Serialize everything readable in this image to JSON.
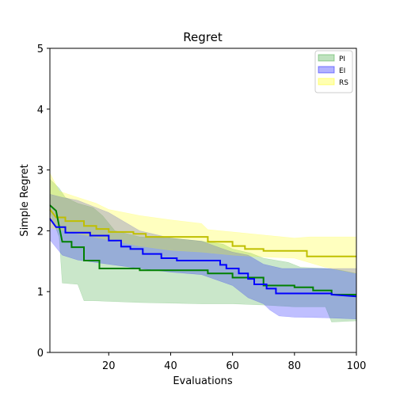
{
  "chart_data": {
    "type": "line",
    "title": "Regret",
    "xlabel": "Evaluations",
    "ylabel": "Simple Regret",
    "xlim": [
      1,
      100
    ],
    "ylim": [
      0,
      5
    ],
    "xticks": [
      20,
      40,
      60,
      80,
      100
    ],
    "yticks": [
      0,
      1,
      2,
      3,
      4,
      5
    ],
    "grid": false,
    "legend_position": "top-right",
    "series": [
      {
        "name": "PI",
        "line_color": "#008000",
        "fill_color": "#2ca02c",
        "mean": [
          [
            1,
            2.42
          ],
          [
            3,
            2.33
          ],
          [
            5,
            1.82
          ],
          [
            8,
            1.82
          ],
          [
            8,
            1.73
          ],
          [
            12,
            1.73
          ],
          [
            12,
            1.51
          ],
          [
            17,
            1.51
          ],
          [
            17,
            1.38
          ],
          [
            30,
            1.38
          ],
          [
            30,
            1.35
          ],
          [
            52,
            1.35
          ],
          [
            52,
            1.3
          ],
          [
            60,
            1.3
          ],
          [
            60,
            1.23
          ],
          [
            70,
            1.23
          ],
          [
            70,
            1.1
          ],
          [
            80,
            1.1
          ],
          [
            80,
            1.07
          ],
          [
            86,
            1.07
          ],
          [
            86,
            1.02
          ],
          [
            92,
            1.02
          ],
          [
            92,
            0.95
          ],
          [
            100,
            0.95
          ]
        ],
        "upper": [
          [
            1,
            2.85
          ],
          [
            4,
            2.7
          ],
          [
            6,
            2.55
          ],
          [
            10,
            2.45
          ],
          [
            15,
            2.38
          ],
          [
            18,
            2.25
          ],
          [
            22,
            2.0
          ],
          [
            30,
            1.9
          ],
          [
            40,
            1.88
          ],
          [
            50,
            1.83
          ],
          [
            57,
            1.78
          ],
          [
            60,
            1.7
          ],
          [
            66,
            1.63
          ],
          [
            70,
            1.55
          ],
          [
            78,
            1.48
          ],
          [
            82,
            1.4
          ],
          [
            90,
            1.38
          ],
          [
            95,
            1.35
          ],
          [
            100,
            1.3
          ]
        ],
        "lower": [
          [
            1,
            2.3
          ],
          [
            4,
            1.9
          ],
          [
            5,
            1.14
          ],
          [
            10,
            1.12
          ],
          [
            12,
            0.85
          ],
          [
            15,
            0.85
          ],
          [
            30,
            0.82
          ],
          [
            50,
            0.8
          ],
          [
            60,
            0.8
          ],
          [
            70,
            0.78
          ],
          [
            80,
            0.75
          ],
          [
            90,
            0.75
          ],
          [
            92,
            0.5
          ],
          [
            100,
            0.52
          ]
        ]
      },
      {
        "name": "EI",
        "line_color": "#0000ff",
        "fill_color": "#0000ff",
        "mean": [
          [
            1,
            2.2
          ],
          [
            3,
            2.06
          ],
          [
            6,
            2.06
          ],
          [
            6,
            1.97
          ],
          [
            14,
            1.97
          ],
          [
            14,
            1.92
          ],
          [
            20,
            1.92
          ],
          [
            20,
            1.84
          ],
          [
            24,
            1.84
          ],
          [
            24,
            1.74
          ],
          [
            27,
            1.74
          ],
          [
            27,
            1.7
          ],
          [
            31,
            1.7
          ],
          [
            31,
            1.62
          ],
          [
            37,
            1.62
          ],
          [
            37,
            1.55
          ],
          [
            42,
            1.55
          ],
          [
            42,
            1.51
          ],
          [
            56,
            1.51
          ],
          [
            56,
            1.44
          ],
          [
            58,
            1.44
          ],
          [
            58,
            1.38
          ],
          [
            62,
            1.38
          ],
          [
            62,
            1.3
          ],
          [
            65,
            1.3
          ],
          [
            65,
            1.21
          ],
          [
            67,
            1.21
          ],
          [
            67,
            1.12
          ],
          [
            71,
            1.12
          ],
          [
            71,
            1.05
          ],
          [
            74,
            1.05
          ],
          [
            74,
            0.97
          ],
          [
            92,
            0.97
          ],
          [
            92,
            0.95
          ],
          [
            100,
            0.92
          ]
        ],
        "upper": [
          [
            1,
            2.6
          ],
          [
            5,
            2.55
          ],
          [
            10,
            2.5
          ],
          [
            15,
            2.4
          ],
          [
            20,
            2.3
          ],
          [
            25,
            2.15
          ],
          [
            30,
            2.0
          ],
          [
            40,
            1.88
          ],
          [
            50,
            1.83
          ],
          [
            57,
            1.7
          ],
          [
            60,
            1.65
          ],
          [
            65,
            1.6
          ],
          [
            70,
            1.45
          ],
          [
            76,
            1.38
          ],
          [
            80,
            1.38
          ],
          [
            88,
            1.38
          ],
          [
            95,
            1.38
          ],
          [
            100,
            1.38
          ]
        ],
        "lower": [
          [
            1,
            1.85
          ],
          [
            5,
            1.6
          ],
          [
            10,
            1.52
          ],
          [
            20,
            1.45
          ],
          [
            30,
            1.38
          ],
          [
            40,
            1.32
          ],
          [
            50,
            1.28
          ],
          [
            60,
            1.1
          ],
          [
            65,
            0.9
          ],
          [
            70,
            0.8
          ],
          [
            72,
            0.7
          ],
          [
            75,
            0.6
          ],
          [
            80,
            0.58
          ],
          [
            90,
            0.57
          ],
          [
            100,
            0.55
          ]
        ]
      },
      {
        "name": "RS",
        "line_color": "#bfbf00",
        "fill_color": "#ffff00",
        "mean": [
          [
            1,
            2.35
          ],
          [
            3,
            2.22
          ],
          [
            6,
            2.22
          ],
          [
            6,
            2.16
          ],
          [
            12,
            2.16
          ],
          [
            12,
            2.08
          ],
          [
            16,
            2.08
          ],
          [
            16,
            2.03
          ],
          [
            20,
            2.03
          ],
          [
            20,
            1.98
          ],
          [
            28,
            1.98
          ],
          [
            28,
            1.95
          ],
          [
            32,
            1.95
          ],
          [
            32,
            1.9
          ],
          [
            52,
            1.9
          ],
          [
            52,
            1.82
          ],
          [
            60,
            1.82
          ],
          [
            60,
            1.75
          ],
          [
            64,
            1.75
          ],
          [
            64,
            1.7
          ],
          [
            70,
            1.7
          ],
          [
            70,
            1.67
          ],
          [
            84,
            1.67
          ],
          [
            84,
            1.58
          ],
          [
            100,
            1.58
          ]
        ],
        "upper": [
          [
            1,
            2.95
          ],
          [
            4,
            2.65
          ],
          [
            10,
            2.55
          ],
          [
            16,
            2.45
          ],
          [
            20,
            2.35
          ],
          [
            30,
            2.25
          ],
          [
            40,
            2.18
          ],
          [
            50,
            2.12
          ],
          [
            52,
            2.02
          ],
          [
            60,
            1.98
          ],
          [
            70,
            1.93
          ],
          [
            80,
            1.88
          ],
          [
            85,
            1.9
          ],
          [
            100,
            1.9
          ]
        ],
        "lower": [
          [
            1,
            2.05
          ],
          [
            6,
            2.0
          ],
          [
            10,
            1.95
          ],
          [
            20,
            1.85
          ],
          [
            30,
            1.75
          ],
          [
            40,
            1.68
          ],
          [
            50,
            1.65
          ],
          [
            60,
            1.6
          ],
          [
            70,
            1.57
          ],
          [
            80,
            1.55
          ],
          [
            90,
            1.4
          ],
          [
            100,
            1.3
          ]
        ]
      }
    ]
  }
}
